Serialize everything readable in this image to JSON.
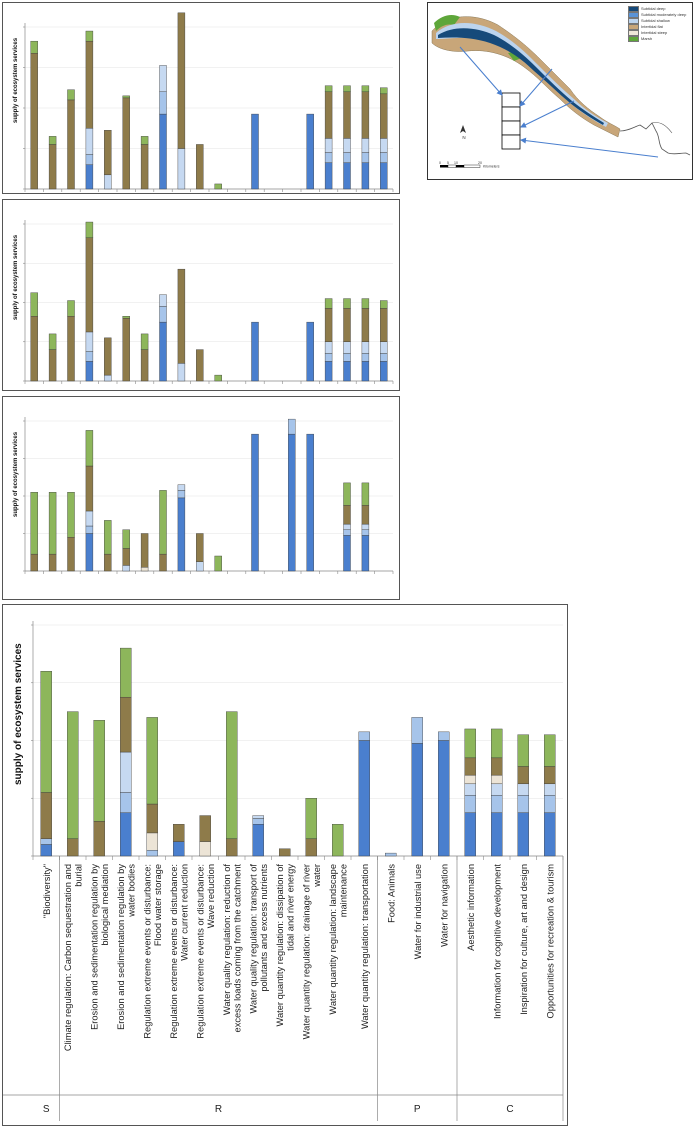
{
  "ylabel": "supply of ecosystem services",
  "colors": {
    "blue": "#4a7fce",
    "lightblue": "#a6c4ea",
    "paleblue": "#c6d9f1",
    "cream": "#ece4d6",
    "brown": "#8e7b4a",
    "green": "#8db65b"
  },
  "services": [
    "\"Biodiversity\"",
    "Climate regulation: Carbon sequestration and burial",
    "Erosion and sedimentation regulation by biological mediation",
    "Erosion and sedimentation regulation by water bodies",
    "Regulation extreme events or disturbance: Flood water storage",
    "Regulation extreme events or disturbance: Water current reduction",
    "Regulation extreme events or disturbance: Wave reduction",
    "Water quality regulation: reduction of excess loads coming from the catchment",
    "Water quality regulation: transport of pollutants and excess nutrients",
    "Water quantity regulation: dissipation of tidal and river energy",
    "Water quantity regulation: drainage of river water",
    "Water quantity regulation: landscape maintenance",
    "Water quantity regulation: transportation",
    "Food: Animals",
    "Water for industrial use",
    "Water for navigation",
    "Aesthetic information",
    "Information for cognitive development",
    "Inspiration for culture, art and design",
    "Opportunities for recreation & tourism"
  ],
  "categories": [
    {
      "label": "S",
      "start": 0,
      "end": 0
    },
    {
      "label": "R",
      "start": 1,
      "end": 12
    },
    {
      "label": "P",
      "start": 13,
      "end": 15
    },
    {
      "label": "C",
      "start": 16,
      "end": 19
    }
  ],
  "map": {
    "legend": [
      "Subtidal deep",
      "Subtidal moderately deep",
      "Subtidal shallow",
      "Intertidal flat",
      "Intertidal steep",
      "Marsh"
    ],
    "legend_colors": [
      "#164a7a",
      "#5a93d6",
      "#bcd4ee",
      "#c8a679",
      "#efe7da",
      "#5ea63a"
    ],
    "north": "N",
    "scale_ticks": [
      "0",
      "5",
      "10",
      "20"
    ],
    "scale_unit": "Kilometers"
  },
  "chart_data": [
    {
      "type": "bar",
      "stacked": true,
      "orientation": "vertical",
      "title": "",
      "ylabel": "supply of ecosystem services",
      "ylim": [
        0,
        8
      ],
      "grid": true,
      "series_order": [
        "blue",
        "lightblue",
        "paleblue",
        "cream",
        "brown",
        "green"
      ],
      "bars": [
        {
          "brown": 6.7,
          "green": 0.6
        },
        {
          "brown": 2.2,
          "green": 0.4
        },
        {
          "brown": 4.4,
          "green": 0.5
        },
        {
          "blue": 1.2,
          "lightblue": 0.5,
          "paleblue": 1.3,
          "brown": 4.3,
          "green": 0.5
        },
        {
          "paleblue": 0.7,
          "brown": 2.2
        },
        {
          "brown": 4.5,
          "green": 0.1
        },
        {
          "brown": 2.2,
          "green": 0.4
        },
        {
          "blue": 3.7,
          "lightblue": 1.1,
          "paleblue": 1.3
        },
        {
          "paleblue": 2.0,
          "brown": 6.7
        },
        {
          "brown": 2.2
        },
        {
          "green": 0.25
        },
        {},
        {
          "blue": 3.7
        },
        {},
        {},
        {
          "blue": 3.7
        },
        {
          "blue": 1.3,
          "lightblue": 0.5,
          "paleblue": 0.7,
          "brown": 2.3,
          "green": 0.3
        },
        {
          "blue": 1.3,
          "lightblue": 0.5,
          "paleblue": 0.7,
          "brown": 2.3,
          "green": 0.3
        },
        {
          "blue": 1.3,
          "lightblue": 0.5,
          "paleblue": 0.7,
          "brown": 2.3,
          "green": 0.3
        },
        {
          "blue": 1.3,
          "lightblue": 0.5,
          "paleblue": 0.7,
          "brown": 2.2,
          "green": 0.3
        }
      ]
    },
    {
      "type": "bar",
      "stacked": true,
      "orientation": "vertical",
      "title": "",
      "ylabel": "supply of ecosystem services",
      "ylim": [
        0,
        8
      ],
      "grid": true,
      "series_order": [
        "blue",
        "lightblue",
        "paleblue",
        "cream",
        "brown",
        "green"
      ],
      "bars": [
        {
          "brown": 3.3,
          "green": 1.2
        },
        {
          "brown": 1.6,
          "green": 0.8
        },
        {
          "brown": 3.3,
          "green": 0.8
        },
        {
          "blue": 1.0,
          "lightblue": 0.5,
          "paleblue": 1.0,
          "brown": 4.8,
          "green": 0.8
        },
        {
          "paleblue": 0.3,
          "brown": 1.9
        },
        {
          "brown": 3.2,
          "green": 0.1
        },
        {
          "brown": 1.6,
          "green": 0.8
        },
        {
          "blue": 3.0,
          "lightblue": 0.8,
          "paleblue": 0.6
        },
        {
          "paleblue": 0.9,
          "brown": 4.8
        },
        {
          "brown": 1.6
        },
        {
          "green": 0.3
        },
        {},
        {
          "blue": 3.0
        },
        {},
        {},
        {
          "blue": 3.0
        },
        {
          "blue": 1.0,
          "lightblue": 0.4,
          "paleblue": 0.6,
          "brown": 1.7,
          "green": 0.5
        },
        {
          "blue": 1.0,
          "lightblue": 0.4,
          "paleblue": 0.6,
          "brown": 1.7,
          "green": 0.5
        },
        {
          "blue": 1.0,
          "lightblue": 0.4,
          "paleblue": 0.6,
          "brown": 1.7,
          "green": 0.5
        },
        {
          "blue": 1.0,
          "lightblue": 0.4,
          "paleblue": 0.6,
          "brown": 1.7,
          "green": 0.4
        }
      ]
    },
    {
      "type": "bar",
      "stacked": true,
      "orientation": "vertical",
      "title": "",
      "ylabel": "supply of ecosystem services",
      "ylim": [
        0,
        8
      ],
      "grid": true,
      "series_order": [
        "blue",
        "lightblue",
        "paleblue",
        "cream",
        "brown",
        "green"
      ],
      "bars": [
        {
          "brown": 0.9,
          "green": 3.3
        },
        {
          "brown": 0.9,
          "green": 3.3
        },
        {
          "brown": 1.8,
          "green": 2.4
        },
        {
          "blue": 2.0,
          "lightblue": 0.4,
          "paleblue": 0.8,
          "brown": 2.4,
          "green": 1.9
        },
        {
          "brown": 0.9,
          "green": 1.8
        },
        {
          "paleblue": 0.3,
          "brown": 0.9,
          "green": 1.0
        },
        {
          "brown": 1.8,
          "cream": 0.2
        },
        {
          "brown": 0.9,
          "green": 3.4
        },
        {
          "blue": 3.9,
          "lightblue": 0.4,
          "paleblue": 0.3
        },
        {
          "paleblue": 0.5,
          "brown": 1.5
        },
        {
          "green": 0.8
        },
        {},
        {
          "blue": 7.3
        },
        {},
        {
          "blue": 7.3,
          "lightblue": 0.8
        },
        {
          "blue": 7.3
        },
        {},
        {
          "blue": 1.9,
          "lightblue": 0.3,
          "paleblue": 0.3,
          "brown": 1.0,
          "green": 1.2
        },
        {
          "blue": 1.9,
          "lightblue": 0.3,
          "paleblue": 0.3,
          "brown": 1.0,
          "green": 1.2
        },
        {}
      ]
    },
    {
      "type": "bar",
      "stacked": true,
      "orientation": "vertical",
      "title": "",
      "ylabel": "supply of ecosystem services",
      "ylim": [
        0,
        8
      ],
      "grid": true,
      "categories_ref": "services",
      "series_order": [
        "blue",
        "lightblue",
        "paleblue",
        "cream",
        "brown",
        "green"
      ],
      "bars": [
        {
          "blue": 0.4,
          "lightblue": 0.2,
          "brown": 1.6,
          "green": 4.2
        },
        {
          "brown": 0.6,
          "green": 4.4
        },
        {
          "brown": 1.2,
          "green": 3.5
        },
        {
          "blue": 1.5,
          "lightblue": 0.7,
          "paleblue": 1.4,
          "brown": 1.9,
          "green": 1.7
        },
        {
          "lightblue": 0.2,
          "brown": 1.0,
          "cream": 0.6,
          "green": 3.0
        },
        {
          "blue": 0.5,
          "brown": 0.6
        },
        {
          "brown": 0.9,
          "cream": 0.5
        },
        {
          "brown": 0.6,
          "green": 4.4
        },
        {
          "blue": 1.1,
          "lightblue": 0.2,
          "paleblue": 0.1
        },
        {
          "brown": 0.25
        },
        {
          "brown": 0.6,
          "green": 1.4
        },
        {
          "green": 1.1
        },
        {
          "blue": 4.0,
          "lightblue": 0.3
        },
        {
          "lightblue": 0.1
        },
        {
          "blue": 3.9,
          "lightblue": 0.9
        },
        {
          "blue": 4.0,
          "lightblue": 0.3
        },
        {
          "blue": 1.5,
          "lightblue": 0.6,
          "paleblue": 0.4,
          "brown": 0.6,
          "cream": 0.3,
          "green": 1.0
        },
        {
          "blue": 1.5,
          "lightblue": 0.6,
          "paleblue": 0.4,
          "brown": 0.6,
          "cream": 0.3,
          "green": 1.0
        },
        {
          "blue": 1.5,
          "lightblue": 0.6,
          "paleblue": 0.4,
          "brown": 0.6,
          "green": 1.1
        },
        {
          "blue": 1.5,
          "lightblue": 0.6,
          "paleblue": 0.4,
          "brown": 0.6,
          "green": 1.1
        }
      ]
    }
  ]
}
